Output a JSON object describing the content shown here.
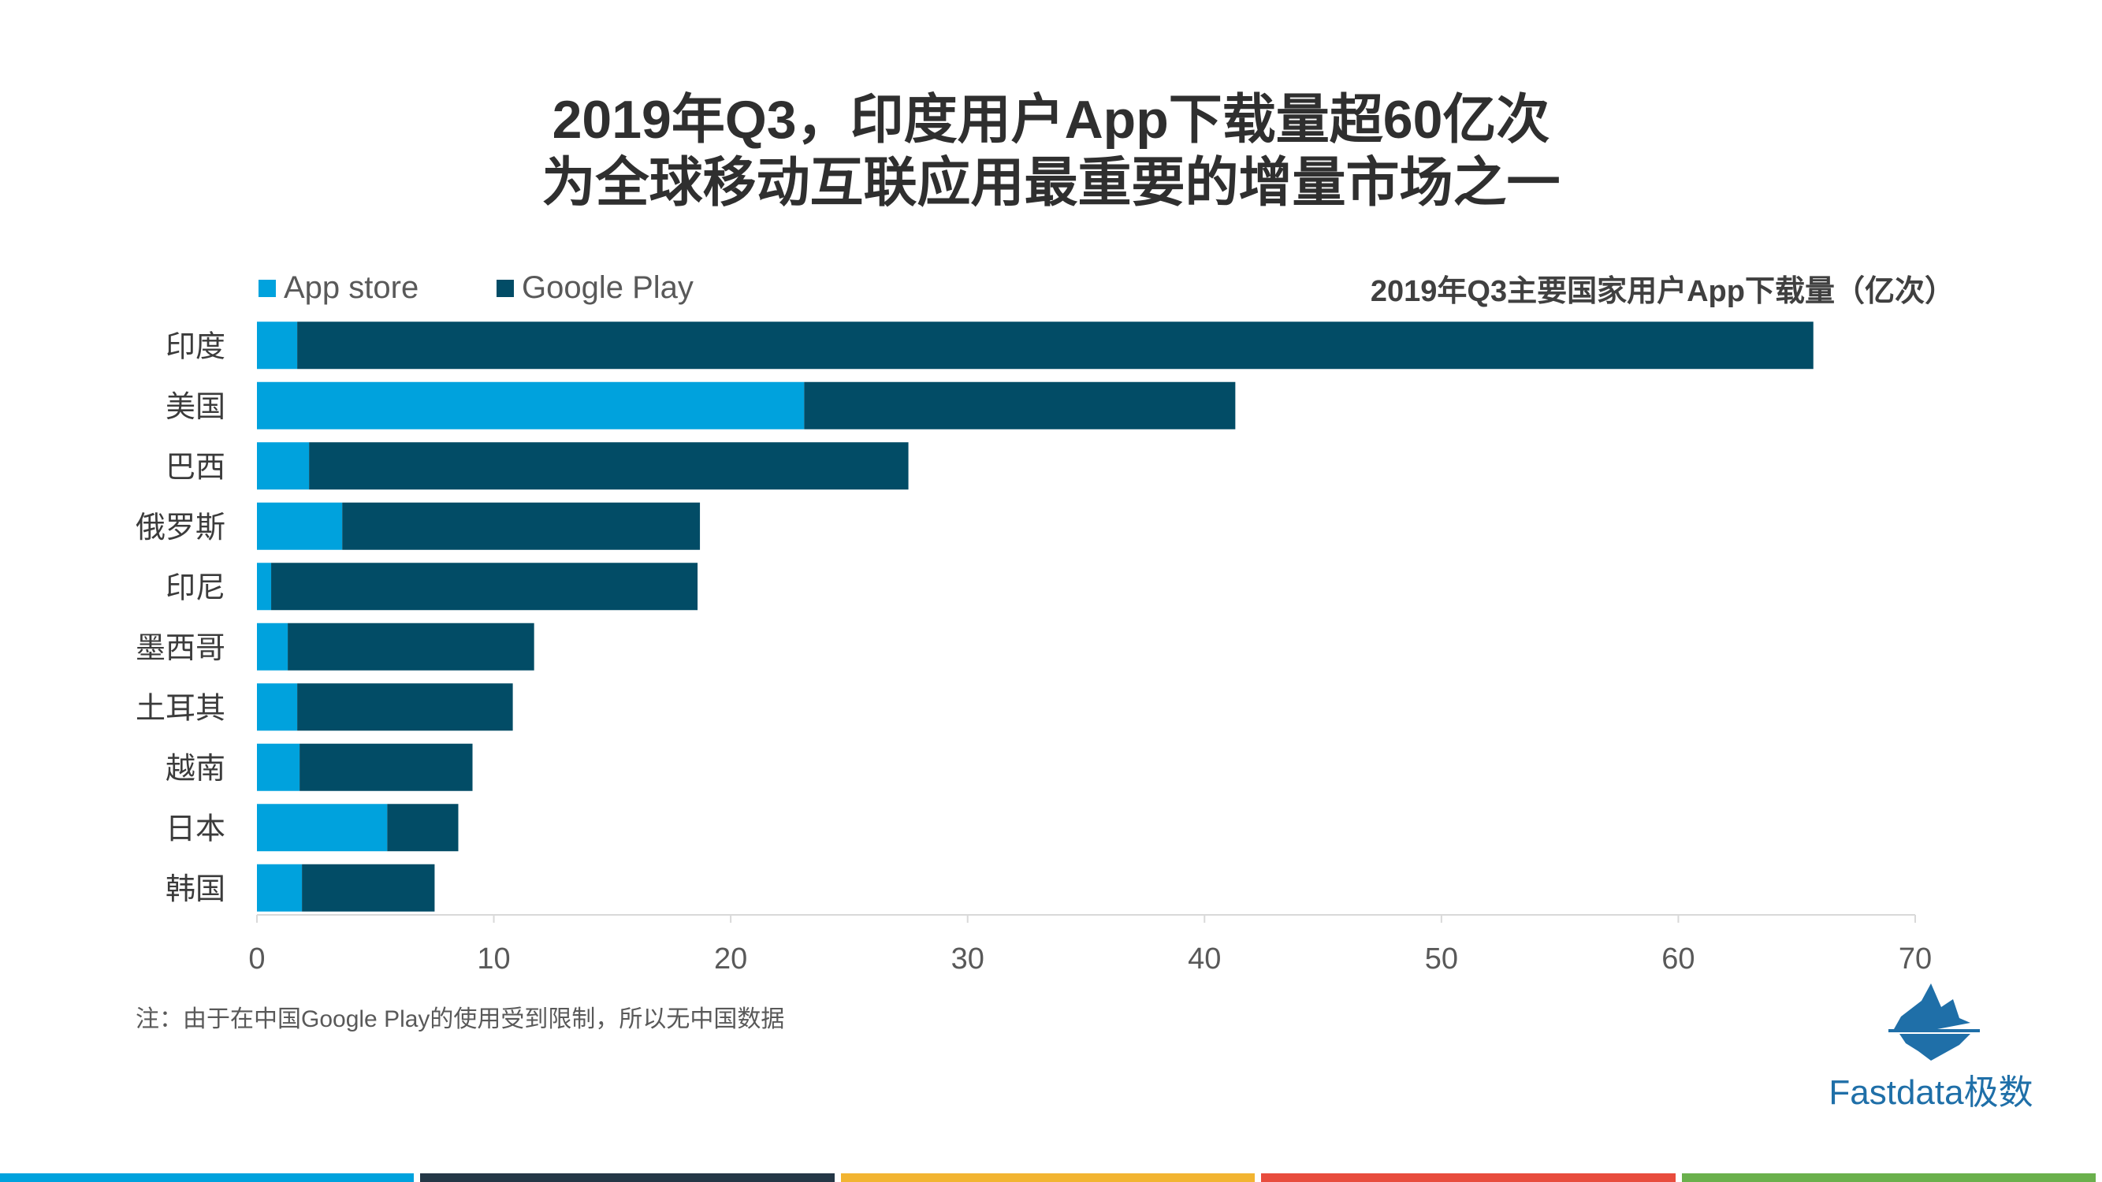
{
  "title": {
    "line1": "2019年Q3，印度用户App下载量超60亿次",
    "line2": "为全球移动互联应用最重要的增量市场之一"
  },
  "note": "注：由于在中国Google Play的使用受到限制，所以无中国数据",
  "logo": {
    "icon": "iceberg-icon",
    "text": "Fastdata极数"
  },
  "footer_colors": [
    "#00a2dd",
    "#243746",
    "#f2b431",
    "#e84c3d",
    "#6ab04c"
  ],
  "chart_data": {
    "type": "bar",
    "orientation": "horizontal",
    "stacked": true,
    "title": "2019年Q3主要国家用户App下载量（亿次）",
    "categories": [
      "印度",
      "美国",
      "巴西",
      "俄罗斯",
      "印尼",
      "墨西哥",
      "土耳其",
      "越南",
      "日本",
      "韩国"
    ],
    "series": [
      {
        "name": "App store",
        "color": "#00a2dd",
        "values": [
          1.7,
          23.1,
          2.2,
          3.6,
          0.6,
          1.3,
          1.7,
          1.8,
          5.5,
          1.9
        ]
      },
      {
        "name": "Google Play",
        "color": "#024c66",
        "values": [
          64.0,
          18.2,
          25.3,
          15.1,
          18.0,
          10.4,
          9.1,
          7.3,
          3.0,
          5.6
        ]
      }
    ],
    "xlim": [
      0,
      70
    ],
    "xticks": [
      0,
      10,
      20,
      30,
      40,
      50,
      60,
      70
    ],
    "legend_position": "top-left",
    "grid": false
  }
}
